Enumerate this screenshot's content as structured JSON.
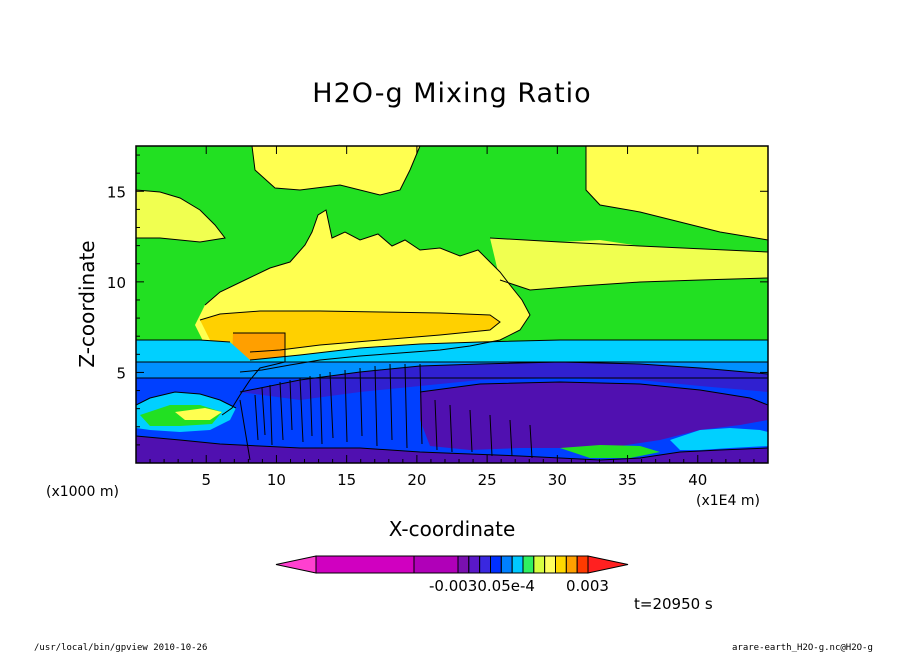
{
  "chart_data": {
    "type": "heatmap",
    "title": "H2O-g Mixing Ratio",
    "xlabel": "X-coordinate",
    "ylabel": "Z-coordinate",
    "x_unit_left": "(x1000 m)",
    "x_unit_right": "(x1E4 m)",
    "xlim": [
      0,
      45
    ],
    "ylim": [
      0,
      17.5
    ],
    "xticks": [
      "5",
      "10",
      "15",
      "20",
      "25",
      "30",
      "35",
      "40"
    ],
    "yticks": [
      "5",
      "10",
      "15"
    ],
    "colorbar_labels": [
      "-0.003",
      "-3.05e-4",
      "0.003"
    ],
    "colorbar_label_raw": "-0.0030.05e-4",
    "palette": [
      "#d000c0",
      "#b000b8",
      "#7a10b0",
      "#5a18c8",
      "#3a28e0",
      "#0030ff",
      "#0080ff",
      "#00c8ff",
      "#30f060",
      "#d8ff40",
      "#ffff60",
      "#ffd800",
      "#ffa000",
      "#ff3a00"
    ],
    "region_colors": {
      "green": "#22e022",
      "yellow": "#ffff50",
      "light_yellow": "#f0ff50",
      "gold": "#ffd000",
      "orange": "#ff9f00",
      "cyan": "#00d0ff",
      "light_blue": "#0090ff",
      "blue": "#0040ff",
      "indigo": "#3020d0",
      "purple": "#5010b0"
    }
  },
  "annotation_time": "t=20950 s",
  "footer_left": "/usr/local/bin/gpview  2010-10-26",
  "footer_right": "arare-earth_H2O-g.nc@H2O-g"
}
